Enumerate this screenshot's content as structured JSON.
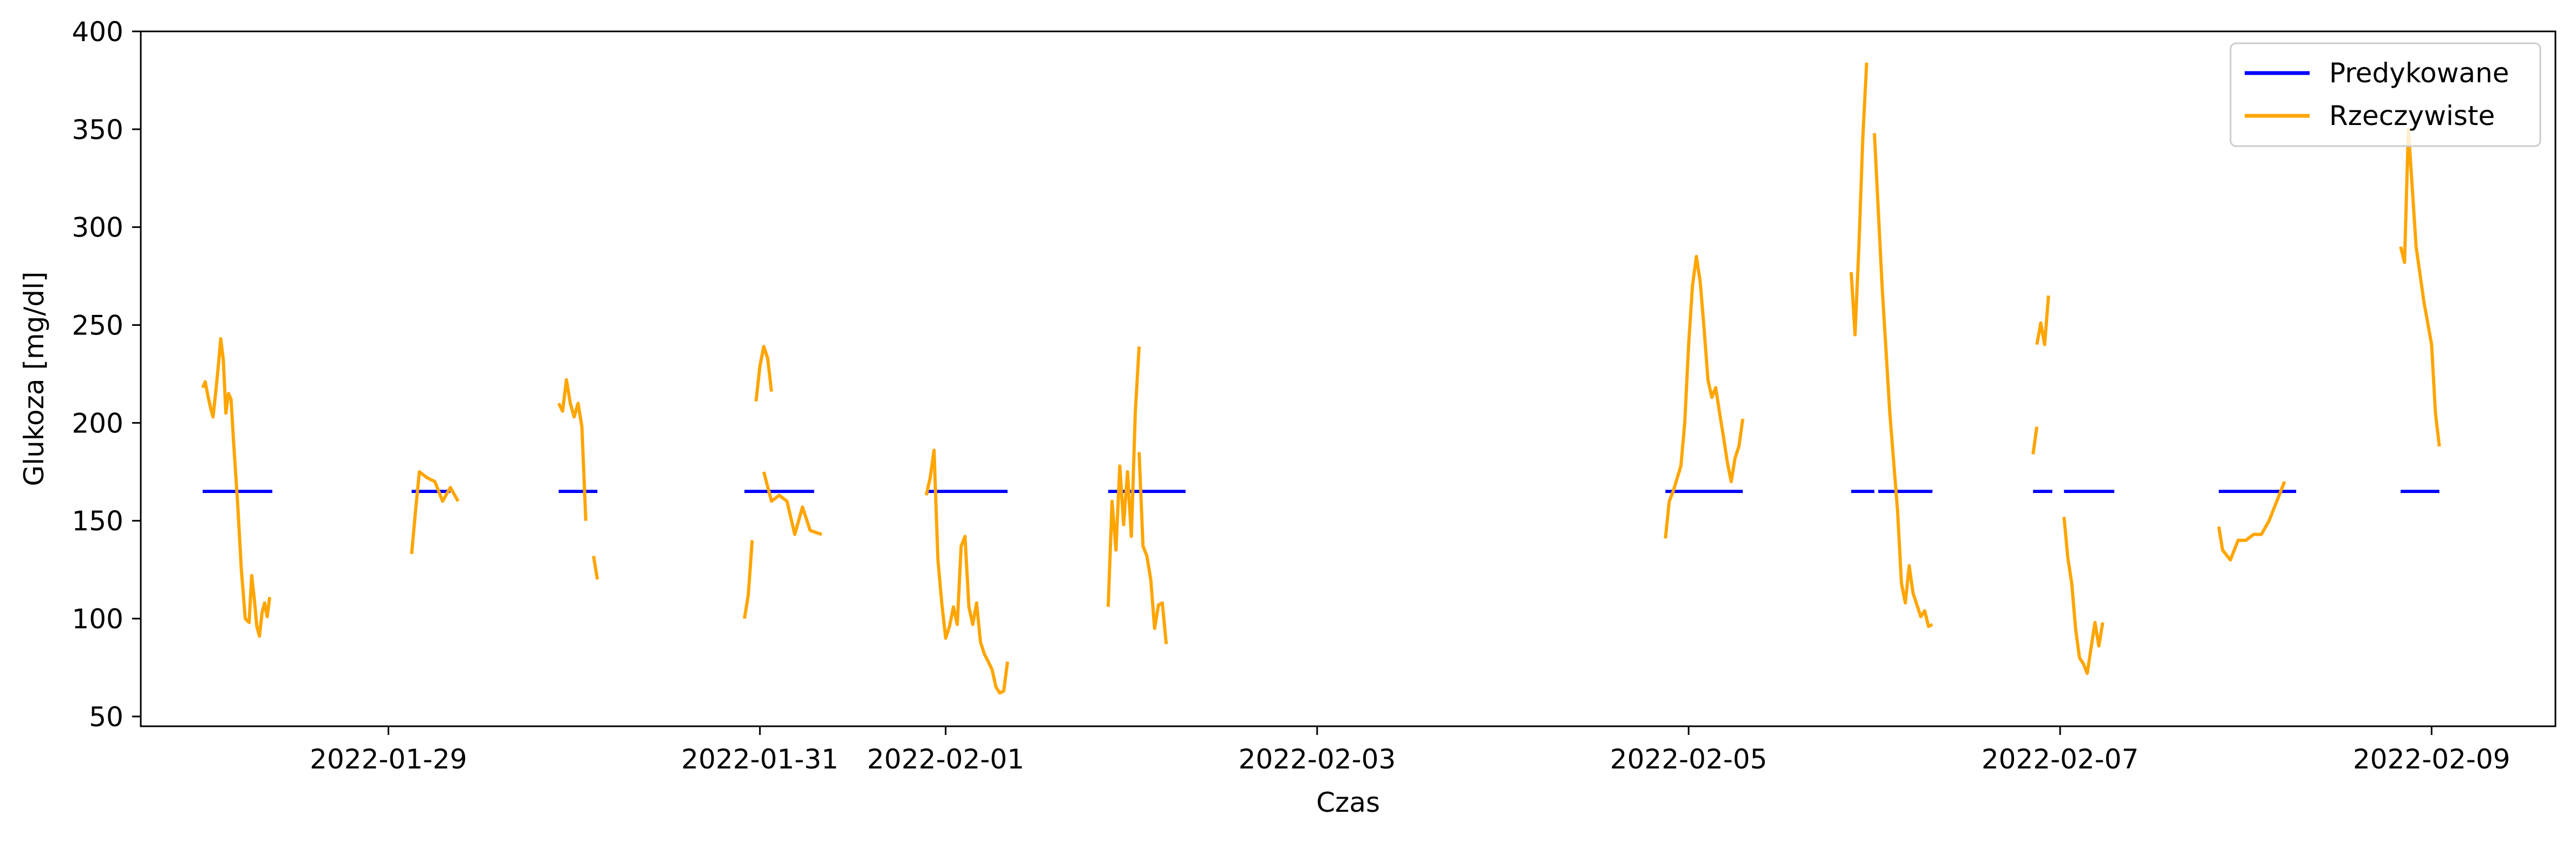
{
  "chart_data": {
    "type": "line",
    "title": "",
    "xlabel": "Czas",
    "ylabel": "Glukoza [mg/dl]",
    "x_axis": {
      "type": "date",
      "range": [
        "2022-01-27T16:00",
        "2022-02-09T16:00"
      ],
      "ticks": [
        "2022-01-29",
        "2022-01-31",
        "2022-02-01",
        "2022-02-03",
        "2022-02-05",
        "2022-02-07",
        "2022-02-09"
      ]
    },
    "y_axis": {
      "range": [
        45,
        400
      ],
      "ticks": [
        50,
        100,
        150,
        200,
        250,
        300,
        350,
        400
      ]
    },
    "grid": false,
    "legend": {
      "position": "top-right"
    },
    "colors": {
      "predicted": "#0000ff",
      "actual": "#ffa500"
    },
    "series": [
      {
        "name": "Predykowane",
        "color": "#0000ff",
        "segments": [
          [
            [
              "2022-01-28T00:00",
              165
            ],
            [
              "2022-01-28T09:00",
              165
            ]
          ],
          [
            [
              "2022-01-29T03:00",
              165
            ],
            [
              "2022-01-29T08:00",
              165
            ]
          ],
          [
            [
              "2022-01-29T22:00",
              165
            ],
            [
              "2022-01-30T03:00",
              165
            ]
          ],
          [
            [
              "2022-01-30T22:00",
              165
            ],
            [
              "2022-01-31T07:00",
              165
            ]
          ],
          [
            [
              "2022-01-31T21:30",
              165
            ],
            [
              "2022-02-01T08:00",
              165
            ]
          ],
          [
            [
              "2022-02-01T21:00",
              165
            ],
            [
              "2022-02-02T07:00",
              165
            ]
          ],
          [
            [
              "2022-02-04T21:00",
              165
            ],
            [
              "2022-02-05T07:00",
              165
            ]
          ],
          [
            [
              "2022-02-05T21:00",
              165
            ],
            [
              "2022-02-06T00:00",
              165
            ]
          ],
          [
            [
              "2022-02-06T00:30",
              165
            ],
            [
              "2022-02-06T07:30",
              165
            ]
          ],
          [
            [
              "2022-02-06T20:30",
              165
            ],
            [
              "2022-02-06T23:00",
              165
            ]
          ],
          [
            [
              "2022-02-07T00:30",
              165
            ],
            [
              "2022-02-07T07:00",
              165
            ]
          ],
          [
            [
              "2022-02-07T20:30",
              165
            ],
            [
              "2022-02-08T06:30",
              165
            ]
          ],
          [
            [
              "2022-02-08T20:00",
              165
            ],
            [
              "2022-02-09T01:00",
              165
            ]
          ]
        ]
      },
      {
        "name": "Rzeczywiste",
        "color": "#ffa500",
        "segments": [
          [
            [
              "2022-01-28T00:00",
              218
            ],
            [
              "2022-01-28T00:20",
              221
            ],
            [
              "2022-01-28T00:40",
              214
            ],
            [
              "2022-01-28T01:00",
              208
            ],
            [
              "2022-01-28T01:20",
              203
            ],
            [
              "2022-01-28T01:40",
              215
            ],
            [
              "2022-01-28T02:00",
              228
            ],
            [
              "2022-01-28T02:20",
              243
            ],
            [
              "2022-01-28T02:40",
              232
            ],
            [
              "2022-01-28T03:00",
              205
            ],
            [
              "2022-01-28T03:20",
              215
            ],
            [
              "2022-01-28T03:40",
              212
            ],
            [
              "2022-01-28T04:00",
              190
            ],
            [
              "2022-01-28T04:30",
              160
            ],
            [
              "2022-01-28T05:00",
              125
            ],
            [
              "2022-01-28T05:30",
              100
            ],
            [
              "2022-01-28T06:00",
              98
            ],
            [
              "2022-01-28T06:20",
              122
            ],
            [
              "2022-01-28T06:40",
              110
            ],
            [
              "2022-01-28T07:00",
              96
            ],
            [
              "2022-01-28T07:20",
              91
            ],
            [
              "2022-01-28T07:40",
              103
            ],
            [
              "2022-01-28T08:00",
              108
            ],
            [
              "2022-01-28T08:20",
              101
            ],
            [
              "2022-01-28T08:40",
              111
            ]
          ],
          [
            [
              "2022-01-29T03:00",
              133
            ],
            [
              "2022-01-29T03:30",
              155
            ],
            [
              "2022-01-29T04:00",
              175
            ],
            [
              "2022-01-29T05:00",
              172
            ],
            [
              "2022-01-29T06:00",
              170
            ],
            [
              "2022-01-29T07:00",
              160
            ],
            [
              "2022-01-29T08:00",
              167
            ],
            [
              "2022-01-29T09:00",
              160
            ]
          ],
          [
            [
              "2022-01-29T22:00",
              210
            ],
            [
              "2022-01-29T22:30",
              206
            ],
            [
              "2022-01-29T23:00",
              222
            ],
            [
              "2022-01-29T23:30",
              210
            ],
            [
              "2022-01-30T00:00",
              203
            ],
            [
              "2022-01-30T00:30",
              210
            ],
            [
              "2022-01-30T01:00",
              198
            ],
            [
              "2022-01-30T01:30",
              150
            ]
          ],
          [
            [
              "2022-01-30T02:30",
              132
            ],
            [
              "2022-01-30T03:00",
              120
            ]
          ],
          [
            [
              "2022-01-30T22:00",
              100
            ],
            [
              "2022-01-30T22:30",
              112
            ],
            [
              "2022-01-30T23:00",
              140
            ]
          ],
          [
            [
              "2022-01-30T23:30",
              211
            ],
            [
              "2022-01-31T00:00",
              229
            ],
            [
              "2022-01-31T00:30",
              239
            ],
            [
              "2022-01-31T01:00",
              233
            ],
            [
              "2022-01-31T01:30",
              216
            ]
          ],
          [
            [
              "2022-01-31T00:30",
              175
            ],
            [
              "2022-01-31T01:30",
              160
            ],
            [
              "2022-01-31T02:30",
              163
            ],
            [
              "2022-01-31T03:30",
              160
            ],
            [
              "2022-01-31T04:30",
              143
            ],
            [
              "2022-01-31T05:30",
              157
            ],
            [
              "2022-01-31T06:30",
              145
            ],
            [
              "2022-01-31T08:00",
              143
            ]
          ],
          [
            [
              "2022-01-31T21:30",
              163
            ],
            [
              "2022-01-31T22:00",
              172
            ],
            [
              "2022-01-31T22:30",
              186
            ],
            [
              "2022-01-31T23:00",
              130
            ],
            [
              "2022-01-31T23:30",
              108
            ],
            [
              "2022-02-01T00:00",
              90
            ],
            [
              "2022-02-01T00:30",
              96
            ],
            [
              "2022-02-01T01:00",
              106
            ],
            [
              "2022-02-01T01:30",
              97
            ],
            [
              "2022-02-01T02:00",
              137
            ],
            [
              "2022-02-01T02:30",
              142
            ],
            [
              "2022-02-01T03:00",
              106
            ],
            [
              "2022-02-01T03:30",
              97
            ],
            [
              "2022-02-01T04:00",
              108
            ],
            [
              "2022-02-01T04:30",
              88
            ],
            [
              "2022-02-01T05:00",
              82
            ],
            [
              "2022-02-01T05:30",
              78
            ],
            [
              "2022-02-01T06:00",
              74
            ],
            [
              "2022-02-01T06:30",
              65
            ],
            [
              "2022-02-01T07:00",
              62
            ],
            [
              "2022-02-01T07:30",
              63
            ],
            [
              "2022-02-01T08:00",
              78
            ]
          ],
          [
            [
              "2022-02-01T21:00",
              106
            ],
            [
              "2022-02-01T21:30",
              160
            ],
            [
              "2022-02-01T22:00",
              135
            ],
            [
              "2022-02-01T22:30",
              178
            ],
            [
              "2022-02-01T23:00",
              148
            ],
            [
              "2022-02-01T23:30",
              175
            ],
            [
              "2022-02-02T00:00",
              142
            ],
            [
              "2022-02-02T00:30",
              205
            ],
            [
              "2022-02-02T01:00",
              239
            ]
          ],
          [
            [
              "2022-02-02T01:00",
              185
            ],
            [
              "2022-02-02T01:30",
              137
            ],
            [
              "2022-02-02T02:00",
              132
            ],
            [
              "2022-02-02T02:30",
              120
            ],
            [
              "2022-02-02T03:00",
              95
            ],
            [
              "2022-02-02T03:30",
              107
            ],
            [
              "2022-02-02T04:00",
              108
            ],
            [
              "2022-02-02T04:30",
              87
            ]
          ],
          [
            [
              "2022-02-04T21:00",
              141
            ],
            [
              "2022-02-04T21:30",
              160
            ],
            [
              "2022-02-04T22:00",
              165
            ],
            [
              "2022-02-04T23:00",
              178
            ],
            [
              "2022-02-04T23:30",
              200
            ],
            [
              "2022-02-05T00:00",
              240
            ],
            [
              "2022-02-05T00:30",
              270
            ],
            [
              "2022-02-05T01:00",
              285
            ],
            [
              "2022-02-05T01:30",
              272
            ],
            [
              "2022-02-05T02:00",
              248
            ],
            [
              "2022-02-05T02:30",
              222
            ],
            [
              "2022-02-05T03:00",
              213
            ],
            [
              "2022-02-05T03:30",
              218
            ],
            [
              "2022-02-05T04:00",
              205
            ],
            [
              "2022-02-05T04:30",
              193
            ],
            [
              "2022-02-05T05:00",
              180
            ],
            [
              "2022-02-05T05:30",
              170
            ],
            [
              "2022-02-05T06:00",
              182
            ],
            [
              "2022-02-05T06:30",
              188
            ],
            [
              "2022-02-05T07:00",
              202
            ]
          ],
          [
            [
              "2022-02-05T21:00",
              277
            ],
            [
              "2022-02-05T21:30",
              245
            ],
            [
              "2022-02-05T22:00",
              290
            ],
            [
              "2022-02-05T22:30",
              345
            ],
            [
              "2022-02-05T23:00",
              384
            ]
          ],
          [
            [
              "2022-02-06T00:00",
              348
            ],
            [
              "2022-02-06T01:00",
              270
            ],
            [
              "2022-02-06T02:00",
              205
            ],
            [
              "2022-02-06T03:00",
              155
            ],
            [
              "2022-02-06T03:30",
              118
            ],
            [
              "2022-02-06T04:00",
              108
            ],
            [
              "2022-02-06T04:30",
              127
            ],
            [
              "2022-02-06T05:00",
              113
            ],
            [
              "2022-02-06T05:30",
              107
            ],
            [
              "2022-02-06T06:00",
              101
            ],
            [
              "2022-02-06T06:30",
              104
            ],
            [
              "2022-02-06T07:00",
              96
            ],
            [
              "2022-02-06T07:30",
              97
            ]
          ],
          [
            [
              "2022-02-06T20:30",
              184
            ],
            [
              "2022-02-06T21:00",
              198
            ]
          ],
          [
            [
              "2022-02-06T21:00",
              240
            ],
            [
              "2022-02-06T21:30",
              251
            ],
            [
              "2022-02-06T22:00",
              240
            ],
            [
              "2022-02-06T22:30",
              265
            ]
          ],
          [
            [
              "2022-02-07T00:30",
              152
            ],
            [
              "2022-02-07T01:00",
              131
            ],
            [
              "2022-02-07T01:30",
              118
            ],
            [
              "2022-02-07T02:00",
              95
            ],
            [
              "2022-02-07T02:30",
              80
            ],
            [
              "2022-02-07T03:00",
              77
            ],
            [
              "2022-02-07T03:30",
              72
            ],
            [
              "2022-02-07T04:00",
              85
            ],
            [
              "2022-02-07T04:30",
              98
            ],
            [
              "2022-02-07T05:00",
              86
            ],
            [
              "2022-02-07T05:30",
              98
            ]
          ],
          [
            [
              "2022-02-07T20:30",
              147
            ],
            [
              "2022-02-07T21:00",
              135
            ],
            [
              "2022-02-07T22:00",
              130
            ],
            [
              "2022-02-07T23:00",
              140
            ],
            [
              "2022-02-08T00:00",
              140
            ],
            [
              "2022-02-08T01:00",
              143
            ],
            [
              "2022-02-08T02:00",
              143
            ],
            [
              "2022-02-08T03:00",
              150
            ],
            [
              "2022-02-08T04:00",
              160
            ],
            [
              "2022-02-08T05:00",
              170
            ]
          ],
          [
            [
              "2022-02-08T20:00",
              290
            ],
            [
              "2022-02-08T20:30",
              282
            ],
            [
              "2022-02-08T21:00",
              350
            ],
            [
              "2022-02-08T22:00",
              290
            ],
            [
              "2022-02-08T23:00",
              262
            ],
            [
              "2022-02-09T00:00",
              240
            ],
            [
              "2022-02-09T00:30",
              205
            ],
            [
              "2022-02-09T01:00",
              188
            ]
          ]
        ]
      }
    ]
  }
}
